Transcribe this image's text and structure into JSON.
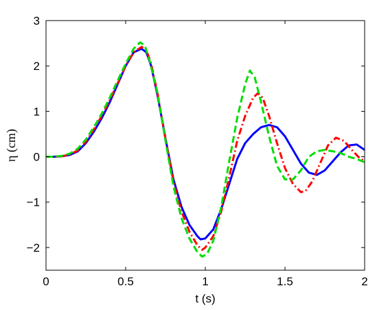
{
  "chart_data": {
    "type": "line",
    "title": "",
    "xlabel": "t (s)",
    "ylabel": "η (cm)",
    "xlim": [
      0,
      2
    ],
    "ylim": [
      -2.5,
      3
    ],
    "xticks": [
      "0",
      "0.5",
      "1",
      "1.5",
      "2"
    ],
    "xtick_values": [
      0,
      0.5,
      1,
      1.5,
      2
    ],
    "yticks": [
      "−2",
      "−1",
      "0",
      "1",
      "2",
      "3"
    ],
    "ytick_values": [
      -2,
      -1,
      0,
      1,
      2,
      3
    ],
    "grid": false,
    "series": [
      {
        "color": "#0000ff",
        "style": "solid",
        "points": [
          [
            0,
            0
          ],
          [
            0.05,
            0
          ],
          [
            0.1,
            0.01
          ],
          [
            0.15,
            0.04
          ],
          [
            0.2,
            0.12
          ],
          [
            0.25,
            0.3
          ],
          [
            0.3,
            0.55
          ],
          [
            0.35,
            0.85
          ],
          [
            0.4,
            1.2
          ],
          [
            0.45,
            1.6
          ],
          [
            0.5,
            2.0
          ],
          [
            0.55,
            2.3
          ],
          [
            0.6,
            2.38
          ],
          [
            0.63,
            2.3
          ],
          [
            0.66,
            2.0
          ],
          [
            0.7,
            1.35
          ],
          [
            0.75,
            0.4
          ],
          [
            0.8,
            -0.5
          ],
          [
            0.85,
            -1.1
          ],
          [
            0.9,
            -1.5
          ],
          [
            0.95,
            -1.75
          ],
          [
            0.97,
            -1.82
          ],
          [
            1.0,
            -1.8
          ],
          [
            1.05,
            -1.6
          ],
          [
            1.1,
            -1.15
          ],
          [
            1.15,
            -0.6
          ],
          [
            1.2,
            -0.05
          ],
          [
            1.25,
            0.3
          ],
          [
            1.3,
            0.5
          ],
          [
            1.35,
            0.65
          ],
          [
            1.4,
            0.7
          ],
          [
            1.45,
            0.65
          ],
          [
            1.5,
            0.45
          ],
          [
            1.55,
            0.15
          ],
          [
            1.6,
            -0.15
          ],
          [
            1.65,
            -0.35
          ],
          [
            1.7,
            -0.4
          ],
          [
            1.75,
            -0.3
          ],
          [
            1.8,
            -0.1
          ],
          [
            1.85,
            0.1
          ],
          [
            1.9,
            0.25
          ],
          [
            1.95,
            0.27
          ],
          [
            2.0,
            0.15
          ]
        ]
      },
      {
        "color": "#ff0000",
        "style": "dashdot",
        "points": [
          [
            0,
            0
          ],
          [
            0.05,
            0
          ],
          [
            0.1,
            0.01
          ],
          [
            0.15,
            0.05
          ],
          [
            0.2,
            0.14
          ],
          [
            0.25,
            0.33
          ],
          [
            0.3,
            0.6
          ],
          [
            0.35,
            0.9
          ],
          [
            0.4,
            1.25
          ],
          [
            0.45,
            1.62
          ],
          [
            0.5,
            2.0
          ],
          [
            0.55,
            2.3
          ],
          [
            0.6,
            2.42
          ],
          [
            0.63,
            2.35
          ],
          [
            0.66,
            2.05
          ],
          [
            0.7,
            1.4
          ],
          [
            0.75,
            0.4
          ],
          [
            0.8,
            -0.55
          ],
          [
            0.85,
            -1.2
          ],
          [
            0.9,
            -1.65
          ],
          [
            0.95,
            -1.95
          ],
          [
            0.98,
            -2.05
          ],
          [
            1.0,
            -2.0
          ],
          [
            1.05,
            -1.75
          ],
          [
            1.1,
            -1.2
          ],
          [
            1.15,
            -0.45
          ],
          [
            1.2,
            0.35
          ],
          [
            1.25,
            0.9
          ],
          [
            1.3,
            1.3
          ],
          [
            1.33,
            1.4
          ],
          [
            1.36,
            1.3
          ],
          [
            1.4,
            0.9
          ],
          [
            1.45,
            0.3
          ],
          [
            1.5,
            -0.25
          ],
          [
            1.55,
            -0.6
          ],
          [
            1.6,
            -0.78
          ],
          [
            1.63,
            -0.75
          ],
          [
            1.67,
            -0.55
          ],
          [
            1.72,
            -0.15
          ],
          [
            1.77,
            0.25
          ],
          [
            1.82,
            0.42
          ],
          [
            1.87,
            0.35
          ],
          [
            1.92,
            0.15
          ],
          [
            1.96,
            0.0
          ],
          [
            2.0,
            -0.1
          ]
        ]
      },
      {
        "color": "#00dd00",
        "style": "dashed",
        "points": [
          [
            0,
            0
          ],
          [
            0.05,
            0
          ],
          [
            0.1,
            0.02
          ],
          [
            0.15,
            0.07
          ],
          [
            0.2,
            0.18
          ],
          [
            0.25,
            0.38
          ],
          [
            0.3,
            0.65
          ],
          [
            0.35,
            0.95
          ],
          [
            0.4,
            1.3
          ],
          [
            0.45,
            1.68
          ],
          [
            0.5,
            2.05
          ],
          [
            0.55,
            2.38
          ],
          [
            0.59,
            2.52
          ],
          [
            0.62,
            2.45
          ],
          [
            0.65,
            2.12
          ],
          [
            0.7,
            1.4
          ],
          [
            0.75,
            0.35
          ],
          [
            0.8,
            -0.65
          ],
          [
            0.85,
            -1.35
          ],
          [
            0.9,
            -1.8
          ],
          [
            0.95,
            -2.1
          ],
          [
            0.98,
            -2.2
          ],
          [
            1.01,
            -2.15
          ],
          [
            1.05,
            -1.85
          ],
          [
            1.1,
            -1.1
          ],
          [
            1.15,
            -0.1
          ],
          [
            1.2,
            0.85
          ],
          [
            1.25,
            1.6
          ],
          [
            1.28,
            1.9
          ],
          [
            1.31,
            1.75
          ],
          [
            1.35,
            1.2
          ],
          [
            1.4,
            0.45
          ],
          [
            1.45,
            -0.2
          ],
          [
            1.5,
            -0.5
          ],
          [
            1.55,
            -0.5
          ],
          [
            1.6,
            -0.3
          ],
          [
            1.65,
            0.0
          ],
          [
            1.7,
            0.12
          ],
          [
            1.75,
            0.15
          ],
          [
            1.8,
            0.12
          ],
          [
            1.85,
            0.08
          ],
          [
            1.9,
            0.0
          ],
          [
            1.95,
            -0.05
          ],
          [
            2.0,
            -0.12
          ]
        ]
      }
    ]
  }
}
